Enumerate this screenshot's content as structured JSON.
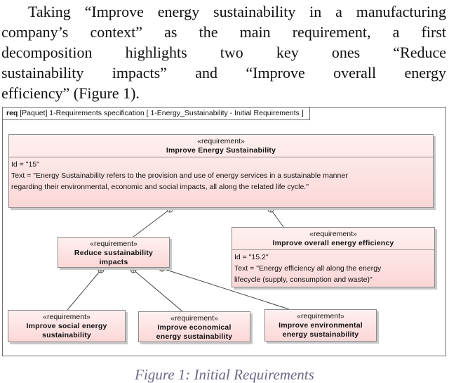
{
  "paragraph": {
    "lines": [
      "Taking “Improve energy sustainability in a manufacturing",
      "company’s context” as the main requirement, a first",
      "decomposition highlights two key ones “Reduce",
      "sustainability impacts” and “Improve overall energy",
      "efficiency” (Figure 1)."
    ]
  },
  "diagram": {
    "frame_keyword": "req",
    "frame_label": "[Paquet] 1-Requirements specification [ 1-Energy_Sustainability - Initial Requirements ]",
    "stereotype": "«requirement»",
    "requirements": {
      "energy_sustainability": {
        "name": "Improve Energy Sustainability",
        "id": "Id = \"15\"",
        "text_lines": [
          "Text = \"Energy Sustainability refers to the provision and use of energy services in a sustainable manner",
          "regarding their environmental, economic and social impacts, all along the related life cycle.\""
        ]
      },
      "reduce_impacts": {
        "name_lines": [
          "Reduce sustainability",
          "impacts"
        ]
      },
      "energy_efficiency": {
        "name": "Improve overall energy efficiency",
        "id": "Id = \"15.2\"",
        "text_lines": [
          "Text = \"Energy efficiency all along the energy",
          "lifecycle (supply, consumption and waste)\""
        ]
      },
      "social": {
        "name_lines": [
          "Improve social energy",
          "sustainability"
        ]
      },
      "economical": {
        "name_lines": [
          "Improve economical",
          "energy sustainability"
        ]
      },
      "environmental": {
        "name_lines": [
          "Improve environmental",
          "energy sustainability"
        ]
      }
    }
  },
  "caption": "Figure 1: Initial Requirements",
  "colors": {
    "box_fill_top": "#fff0f0",
    "box_fill_bottom": "#fbd7d7",
    "border": "#8a8a8a",
    "caption": "#6a6a88"
  }
}
